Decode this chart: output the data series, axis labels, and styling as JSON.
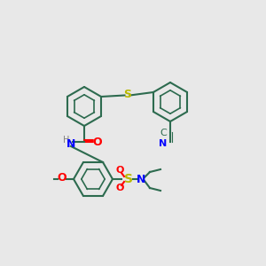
{
  "bg_color": "#e8e8e8",
  "bond_color": "#2d6b4f",
  "ring_lw": 1.5,
  "colors": {
    "C": "#2d6b4f",
    "N": "#0000ff",
    "O": "#ff0000",
    "S": "#b8b800",
    "H": "#808080"
  }
}
